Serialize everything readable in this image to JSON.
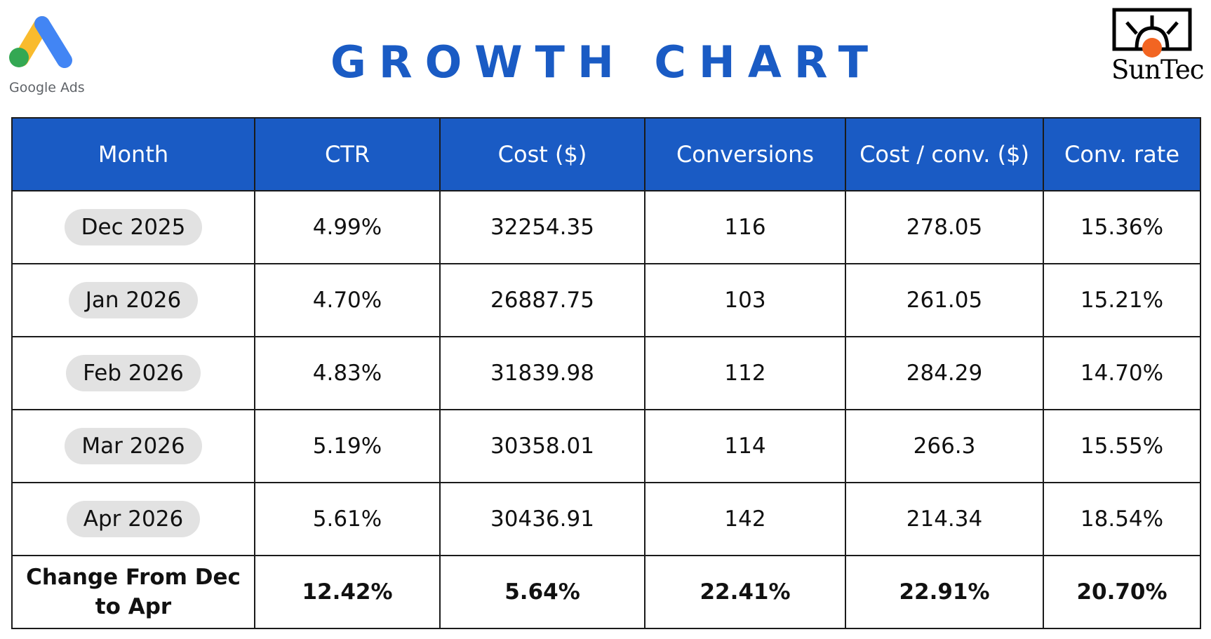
{
  "header": {
    "title": "GROWTH CHART",
    "left_logo": {
      "icon": "google-ads-icon",
      "caption": "Google Ads"
    },
    "right_logo": {
      "icon": "suntec-sun-icon",
      "caption": "SunTec"
    }
  },
  "colors": {
    "header_blue": "#1a5bc4",
    "change_green": "#6aab48",
    "pill_gray": "#e2e2e2",
    "google_yellow": "#f9bb2d",
    "google_blue": "#4285f4",
    "google_green": "#34a853",
    "suntec_orange": "#f26522"
  },
  "chart_data": {
    "type": "table",
    "columns": [
      "Month",
      "CTR",
      "Cost ($)",
      "Conversions",
      "Cost / conv. ($)",
      "Conv. rate"
    ],
    "rows": [
      [
        "Dec 2025",
        "4.99%",
        "32254.35",
        "116",
        "278.05",
        "15.36%"
      ],
      [
        "Jan 2026",
        "4.70%",
        "26887.75",
        "103",
        "261.05",
        "15.21%"
      ],
      [
        "Feb 2026",
        "4.83%",
        "31839.98",
        "112",
        "284.29",
        "14.70%"
      ],
      [
        "Mar 2026",
        "5.19%",
        "30358.01",
        "114",
        "266.3",
        "15.55%"
      ],
      [
        "Apr 2026",
        "5.61%",
        "30436.91",
        "142",
        "214.34",
        "18.54%"
      ]
    ],
    "change_row": [
      "Change From Dec to Apr",
      "12.42%",
      "5.64%",
      "22.41%",
      "22.91%",
      "20.70%"
    ]
  }
}
